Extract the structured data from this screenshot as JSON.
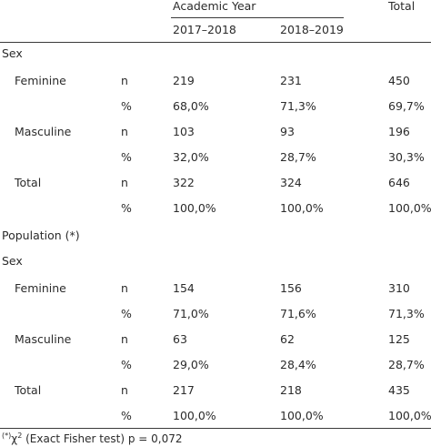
{
  "header": {
    "group_label": "Academic Year",
    "total_label": "Total",
    "col1": "2017–2018",
    "col2": "2018–2019"
  },
  "section1": {
    "title": "Sex",
    "rows": [
      {
        "label": "Feminine",
        "stat": "n",
        "v1": "219",
        "v2": "231",
        "total": "450"
      },
      {
        "label": "",
        "stat": "%",
        "v1": "68,0%",
        "v2": "71,3%",
        "total": "69,7%"
      },
      {
        "label": "Masculine",
        "stat": "n",
        "v1": "103",
        "v2": "93",
        "total": "196"
      },
      {
        "label": "",
        "stat": "%",
        "v1": "32,0%",
        "v2": "28,7%",
        "total": "30,3%"
      },
      {
        "label": "Total",
        "stat": "n",
        "v1": "322",
        "v2": "324",
        "total": "646"
      },
      {
        "label": "",
        "stat": "%",
        "v1": "100,0%",
        "v2": "100,0%",
        "total": "100,0%"
      }
    ]
  },
  "section2": {
    "title": "Population (*)",
    "subtitle": "Sex",
    "rows": [
      {
        "label": "Feminine",
        "stat": "n",
        "v1": "154",
        "v2": "156",
        "total": "310"
      },
      {
        "label": "",
        "stat": "%",
        "v1": "71,0%",
        "v2": "71,6%",
        "total": "71,3%"
      },
      {
        "label": "Masculine",
        "stat": "n",
        "v1": "63",
        "v2": "62",
        "total": "125"
      },
      {
        "label": "",
        "stat": "%",
        "v1": "29,0%",
        "v2": "28,4%",
        "total": "28,7%"
      },
      {
        "label": "Total",
        "stat": "n",
        "v1": "217",
        "v2": "218",
        "total": "435"
      },
      {
        "label": "",
        "stat": "%",
        "v1": "100,0%",
        "v2": "100,0%",
        "total": "100,0%"
      }
    ]
  },
  "footnote": {
    "marker": "(*)",
    "chi": "χ",
    "power": "2",
    "text": " (Exact Fisher test) p = 0,072"
  }
}
